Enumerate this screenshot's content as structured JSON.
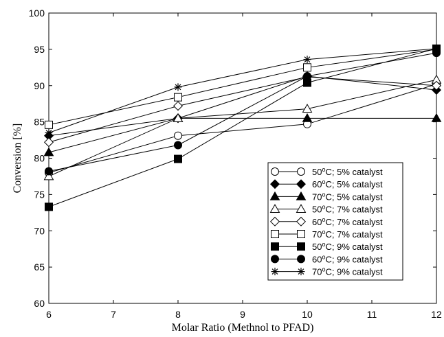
{
  "chart_data": {
    "type": "line",
    "xlabel": "Molar Ratio (Methnol to PFAD)",
    "ylabel": "Conversion [%]",
    "xlim": [
      6,
      12
    ],
    "ylim": [
      60,
      100
    ],
    "xticks": [
      6,
      7,
      8,
      9,
      10,
      11,
      12
    ],
    "yticks": [
      60,
      65,
      70,
      75,
      80,
      85,
      90,
      95,
      100
    ],
    "x": [
      6,
      8,
      10,
      12
    ],
    "grid": false,
    "legend_position": "bottom-right",
    "series": [
      {
        "name": "50oC; 5% catalyst",
        "temp": "50",
        "rest": "; 5% catalyst",
        "marker": "circle-open",
        "values": [
          78.0,
          83.1,
          84.7,
          90.2
        ]
      },
      {
        "name": "60oC; 5% catalyst",
        "temp": "60",
        "rest": "; 5% catalyst",
        "marker": "diamond-filled",
        "values": [
          83.1,
          85.5,
          91.3,
          89.4
        ]
      },
      {
        "name": "70oC; 5% catalyst",
        "temp": "70",
        "rest": "; 5% catalyst",
        "marker": "triangle-filled",
        "values": [
          80.8,
          85.5,
          85.5,
          85.5
        ]
      },
      {
        "name": "50oC; 7% catalyst",
        "temp": "50",
        "rest": "; 7% catalyst",
        "marker": "triangle-open",
        "values": [
          77.5,
          85.5,
          86.8,
          90.8
        ]
      },
      {
        "name": "60oC; 7% catalyst",
        "temp": "60",
        "rest": "; 7% catalyst",
        "marker": "diamond-open",
        "values": [
          82.2,
          87.2,
          91.2,
          90.0
        ]
      },
      {
        "name": "70oC; 7% catalyst",
        "temp": "70",
        "rest": "; 7% catalyst",
        "marker": "square-open",
        "values": [
          84.6,
          88.4,
          92.5,
          95.0
        ]
      },
      {
        "name": "50oC; 9% catalyst",
        "temp": "50",
        "rest": "; 9% catalyst",
        "marker": "square-filled",
        "values": [
          73.3,
          79.9,
          90.4,
          95.1
        ]
      },
      {
        "name": "60oC; 9% catalyst",
        "temp": "60",
        "rest": "; 9% catalyst",
        "marker": "circle-filled",
        "values": [
          78.2,
          81.8,
          91.3,
          94.5
        ]
      },
      {
        "name": "70oC; 9% catalyst",
        "temp": "70",
        "rest": "; 9% catalyst",
        "marker": "asterisk",
        "values": [
          83.5,
          89.8,
          93.6,
          95.1
        ]
      }
    ]
  }
}
